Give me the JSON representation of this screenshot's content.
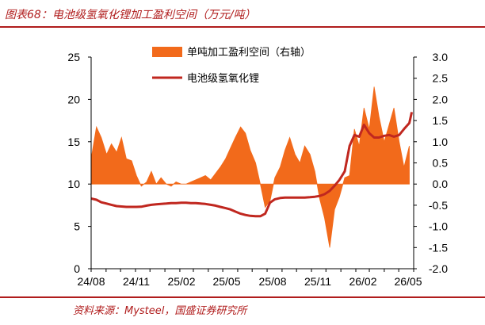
{
  "header": {
    "title": "图表68：电池级氢氧化锂加工盈利空间（万元/吨）"
  },
  "footer": {
    "source": "资料来源：Mysteel，国盛证券研究所"
  },
  "chart_data": {
    "type": "line",
    "title": "电池级氢氧化锂加工盈利空间（万元/吨）",
    "legend_position": "top-center",
    "grid": false,
    "x_tick_labels": [
      "24/08",
      "24/11",
      "25/02",
      "25/05",
      "25/08",
      "25/11",
      "26/02",
      "26/05"
    ],
    "left_axis": {
      "ylim": [
        0,
        25
      ],
      "ticks": [
        "0",
        "5",
        "10",
        "15",
        "20",
        "25"
      ]
    },
    "right_axis": {
      "ylim": [
        -2.0,
        3.0
      ],
      "ticks": [
        "-2.0",
        "-1.5",
        "-1.0",
        "-0.5",
        "0.0",
        "0.5",
        "1.0",
        "1.5",
        "2.0",
        "2.5",
        "3.0"
      ]
    },
    "series": [
      {
        "name": "单吨加工盈利空间（右轴）",
        "type": "area",
        "axis": "right",
        "color": "#f26a1b",
        "x": [
          "2024-08-01",
          "2024-08-12",
          "2024-08-22",
          "2024-09-02",
          "2024-09-12",
          "2024-09-23",
          "2024-10-03",
          "2024-10-13",
          "2024-10-24",
          "2024-11-03",
          "2024-11-13",
          "2024-11-24",
          "2024-12-04",
          "2024-12-14",
          "2024-12-24",
          "2025-01-04",
          "2025-01-14",
          "2025-01-24",
          "2025-02-04",
          "2025-02-14",
          "2025-02-24",
          "2025-03-06",
          "2025-03-16",
          "2025-03-26",
          "2025-04-06",
          "2025-04-16",
          "2025-04-26",
          "2025-05-07",
          "2025-05-17",
          "2025-05-27",
          "2025-06-07",
          "2025-06-17",
          "2025-06-27",
          "2025-07-08",
          "2025-07-18",
          "2025-07-28",
          "2025-08-07",
          "2025-08-17",
          "2025-08-28",
          "2025-09-07",
          "2025-09-17",
          "2025-09-28",
          "2025-10-08",
          "2025-10-18",
          "2025-10-29",
          "2025-11-08",
          "2025-11-18",
          "2025-11-28",
          "2025-12-09",
          "2025-12-19",
          "2025-12-29",
          "2026-01-09",
          "2026-01-19",
          "2026-01-29",
          "2026-02-08",
          "2026-02-18",
          "2026-03-01",
          "2026-03-11",
          "2026-03-21",
          "2026-04-01",
          "2026-04-11",
          "2026-04-21",
          "2026-05-02",
          "2026-05-12",
          "2026-05-23"
        ],
        "values": [
          0.6,
          1.35,
          1.1,
          0.7,
          0.95,
          0.75,
          1.1,
          0.6,
          0.55,
          0.2,
          -0.05,
          0.05,
          0.3,
          0.0,
          0.15,
          0.0,
          -0.05,
          0.05,
          0.0,
          0.0,
          0.05,
          0.1,
          0.15,
          0.2,
          0.1,
          0.25,
          0.4,
          0.6,
          0.85,
          1.1,
          1.35,
          1.2,
          0.8,
          0.5,
          0.0,
          -0.55,
          -0.4,
          0.15,
          0.4,
          0.8,
          1.1,
          0.7,
          0.5,
          0.9,
          0.7,
          0.3,
          -0.35,
          -0.8,
          -1.5,
          -0.6,
          -0.3,
          0.15,
          0.2,
          1.3,
          0.9,
          1.8,
          1.3,
          2.3,
          1.6,
          1.0,
          1.4,
          1.8,
          1.0,
          0.4,
          0.9
        ]
      },
      {
        "name": "电池级氢氧化锂",
        "type": "line",
        "axis": "left",
        "color": "#c0271f",
        "x": [
          "2024-08-01",
          "2024-08-12",
          "2024-08-22",
          "2024-09-02",
          "2024-09-12",
          "2024-09-23",
          "2024-10-03",
          "2024-10-13",
          "2024-10-24",
          "2024-11-03",
          "2024-11-13",
          "2024-11-24",
          "2024-12-04",
          "2024-12-14",
          "2024-12-24",
          "2025-01-04",
          "2025-01-14",
          "2025-01-24",
          "2025-02-04",
          "2025-02-14",
          "2025-02-24",
          "2025-03-06",
          "2025-03-16",
          "2025-03-26",
          "2025-04-06",
          "2025-04-16",
          "2025-04-26",
          "2025-05-07",
          "2025-05-17",
          "2025-05-27",
          "2025-06-07",
          "2025-06-17",
          "2025-06-27",
          "2025-07-08",
          "2025-07-18",
          "2025-07-28",
          "2025-08-07",
          "2025-08-17",
          "2025-08-28",
          "2025-09-07",
          "2025-09-17",
          "2025-09-28",
          "2025-10-08",
          "2025-10-18",
          "2025-10-29",
          "2025-11-08",
          "2025-11-18",
          "2025-11-28",
          "2025-12-09",
          "2025-12-19",
          "2025-12-29",
          "2026-01-09",
          "2026-01-19",
          "2026-01-29",
          "2026-02-08",
          "2026-02-18",
          "2026-03-01",
          "2026-03-11",
          "2026-03-21",
          "2026-04-01",
          "2026-04-11",
          "2026-04-21",
          "2026-05-02",
          "2026-05-12",
          "2026-05-23",
          "2026-05-28"
        ],
        "values": [
          8.3,
          8.15,
          7.85,
          7.7,
          7.55,
          7.4,
          7.35,
          7.3,
          7.3,
          7.3,
          7.32,
          7.45,
          7.55,
          7.6,
          7.65,
          7.7,
          7.75,
          7.75,
          7.8,
          7.8,
          7.75,
          7.75,
          7.7,
          7.65,
          7.55,
          7.45,
          7.3,
          7.15,
          7.0,
          6.75,
          6.5,
          6.35,
          6.25,
          6.2,
          6.2,
          6.5,
          7.8,
          8.2,
          8.35,
          8.4,
          8.4,
          8.4,
          8.4,
          8.4,
          8.45,
          8.5,
          8.6,
          8.8,
          9.2,
          9.8,
          10.5,
          11.5,
          14.5,
          15.8,
          15.6,
          17.0,
          16.0,
          15.5,
          15.5,
          15.7,
          15.8,
          15.6,
          15.8,
          16.5,
          17.2,
          18.5
        ]
      }
    ]
  }
}
